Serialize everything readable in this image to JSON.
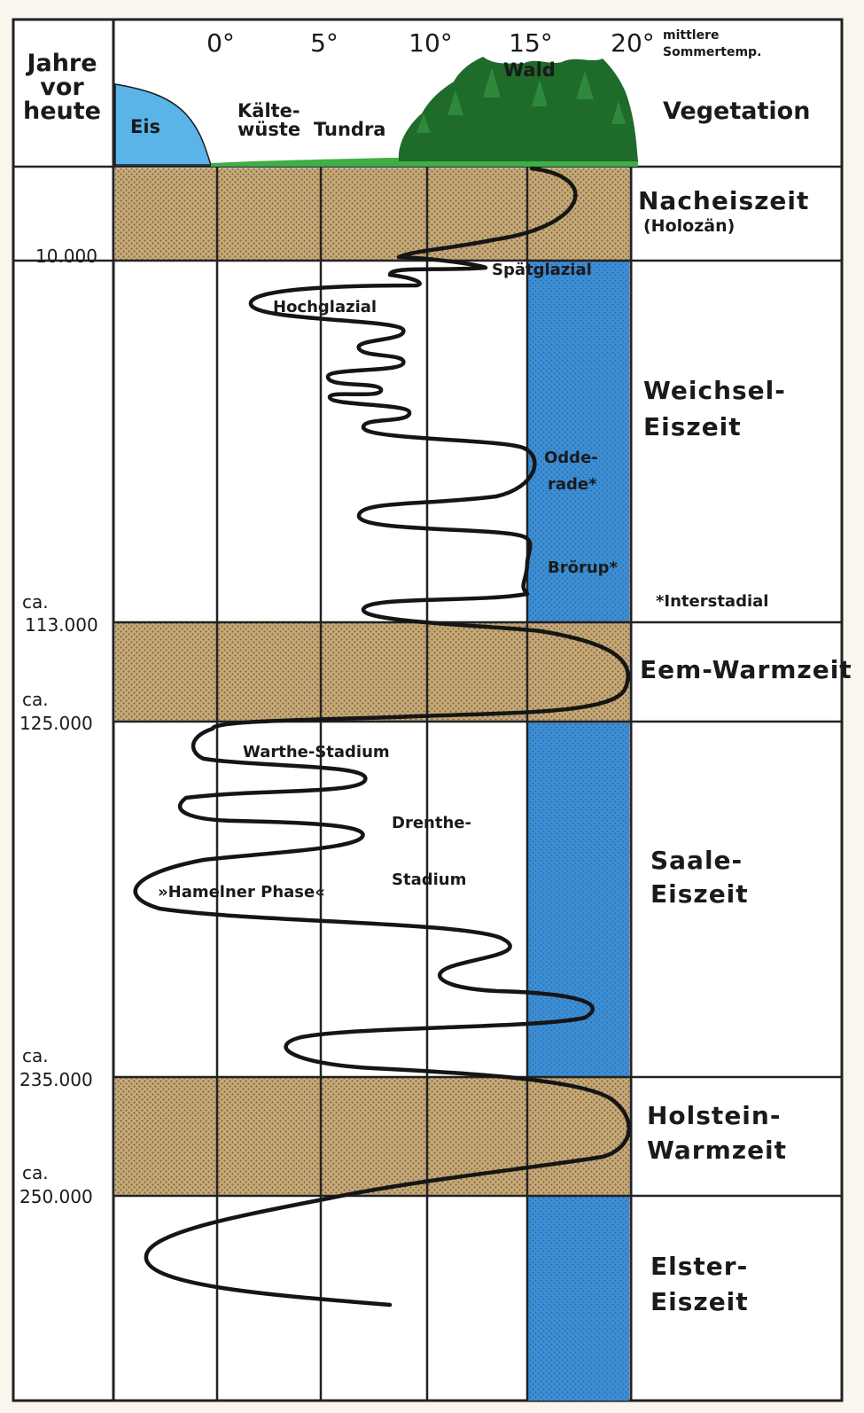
{
  "header": {
    "years_label": [
      "Jahre",
      "vor",
      "heute"
    ],
    "temp_ticks": [
      "0°",
      "5°",
      "10°",
      "15°",
      "20°"
    ],
    "temp_unit": [
      "mittlere",
      "Sommertemp."
    ],
    "vegetation_title": "Vegetation",
    "vegetation_zones": {
      "ice": "Eis",
      "cold_desert": [
        "Kälte-",
        "wüste"
      ],
      "tundra": "Tundra",
      "forest": "Wald"
    }
  },
  "time_markers": [
    {
      "prefix": "",
      "value": "10.000"
    },
    {
      "prefix": "ca.",
      "value": "113.000"
    },
    {
      "prefix": "ca.",
      "value": "125.000"
    },
    {
      "prefix": "ca.",
      "value": "235.000"
    },
    {
      "prefix": "ca.",
      "value": "250.000"
    }
  ],
  "epochs": [
    {
      "lines": [
        "Nacheiszeit"
      ],
      "sub": "(Holozän)",
      "warm": true
    },
    {
      "lines": [
        "Weichsel-",
        "Eiszeit"
      ],
      "sub": "",
      "warm": false
    },
    {
      "lines": [
        "Eem-Warmzeit"
      ],
      "sub": "",
      "warm": true
    },
    {
      "lines": [
        "Saale-",
        "Eiszeit"
      ],
      "sub": "",
      "warm": false
    },
    {
      "lines": [
        "Holstein-",
        "Warmzeit"
      ],
      "sub": "",
      "warm": true
    },
    {
      "lines": [
        "Elster-",
        "Eiszeit"
      ],
      "sub": "",
      "warm": false
    }
  ],
  "curve_labels": {
    "spaetglazial": "Spätglazial",
    "hochglazial": "Hochglazial",
    "odderade": [
      "Odde-",
      "rade*"
    ],
    "broerup": "Brörup*",
    "interstadial_note": "*Interstadial",
    "warthe": "Warthe-Stadium",
    "drenthe": [
      "Drenthe-",
      "Stadium"
    ],
    "hameln": "»Hamelner Phase«"
  },
  "colors": {
    "warm_band": "#c9aa78",
    "cold_band": "#3d8fd6",
    "ice": "#5bb4e8",
    "forest": "#1f6b2a",
    "grass": "#3fae45",
    "curve": "#151515"
  }
}
